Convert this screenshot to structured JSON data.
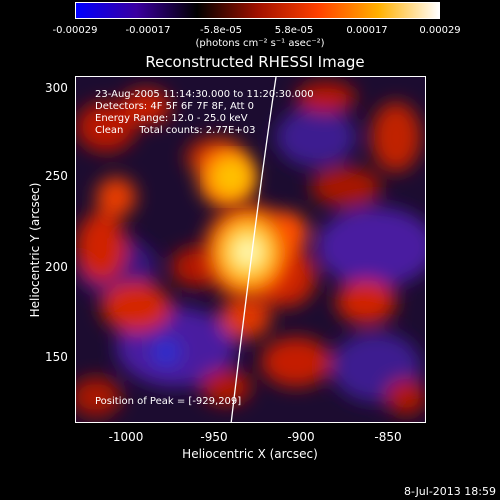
{
  "colorbar": {
    "ticks": [
      "-0.00029",
      "-0.00017",
      "-5.8e-05",
      "5.8e-05",
      "0.00017",
      "0.00029"
    ],
    "unit_label": "(photons cm⁻² s⁻¹ asec⁻²)",
    "colors": [
      "#0000ff",
      "#3a00a0",
      "#000000",
      "#a01000",
      "#ff4000",
      "#ffb000",
      "#ffffff"
    ]
  },
  "title": "Reconstructed RHESSI Image",
  "info_lines": [
    "23-Aug-2005 11:14:30.000 to 11:20:30.000",
    "Detectors: 4F 5F 6F 7F 8F, Att 0",
    "Energy Range: 12.0 - 25.0 keV",
    "Clean     Total counts: 2.77E+03"
  ],
  "peak_label": "Position of Peak = [-929,209]",
  "axes": {
    "xlabel": "Heliocentric X (arcsec)",
    "ylabel": "Heliocentric Y (arcsec)",
    "xticks": [
      "-1000",
      "-950",
      "-900",
      "-850"
    ],
    "yticks": [
      "300",
      "250",
      "200",
      "150"
    ]
  },
  "footer_date": "8-Jul-2013 18:59"
}
